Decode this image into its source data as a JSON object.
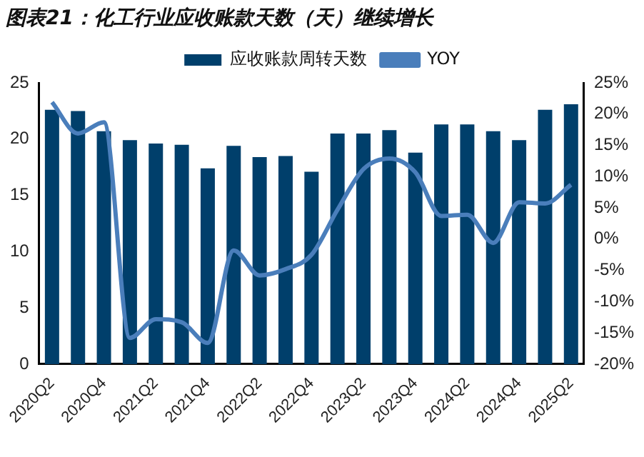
{
  "chart_data": {
    "type": "bar",
    "title": "图表21：化工行业应收账款天数（天）继续增长",
    "categories": [
      "2020Q2",
      null,
      "2020Q4",
      null,
      "2021Q2",
      null,
      "2021Q4",
      null,
      "2022Q2",
      null,
      "2022Q4",
      null,
      "2023Q2",
      null,
      "2023Q4",
      null,
      "2024Q2",
      null,
      "2024Q4",
      null,
      "2025Q2"
    ],
    "series": [
      {
        "name": "应收账款周转天数",
        "color": "#003f6b",
        "values": [
          22.6,
          22.5,
          20.7,
          19.9,
          19.6,
          19.5,
          17.4,
          19.4,
          18.4,
          18.5,
          17.1,
          20.5,
          20.5,
          20.8,
          18.8,
          21.3,
          21.3,
          20.7,
          19.9,
          22.6,
          23.1
        ]
      },
      {
        "name": "YOY",
        "type": "line",
        "axis": "y2",
        "color": "#4a7ebb",
        "values": [
          21.9,
          16.9,
          18.7,
          -15.8,
          -12.8,
          -13.3,
          -16.6,
          -1.8,
          -5.8,
          -4.8,
          -2.5,
          4.7,
          11.2,
          12.9,
          10.7,
          3.7,
          3.9,
          -0.6,
          5.9,
          5.7,
          8.7
        ]
      }
    ],
    "ylim": [
      0,
      25
    ],
    "yticks": [
      0,
      5,
      10,
      15,
      20,
      25
    ],
    "y2lim": [
      -20,
      25
    ],
    "y2ticks": [
      {
        "value": -20,
        "label": "-20%"
      },
      {
        "value": -15,
        "label": "-15%"
      },
      {
        "value": -10,
        "label": "-10%"
      },
      {
        "value": -5,
        "label": "-5%"
      },
      {
        "value": 0,
        "label": "0%"
      },
      {
        "value": 5,
        "label": "5%"
      },
      {
        "value": 10,
        "label": "10%"
      },
      {
        "value": 15,
        "label": "15%"
      },
      {
        "value": 20,
        "label": "20%"
      },
      {
        "value": 25,
        "label": "25%"
      }
    ],
    "grid": false,
    "legend": "top",
    "marker": "none"
  }
}
